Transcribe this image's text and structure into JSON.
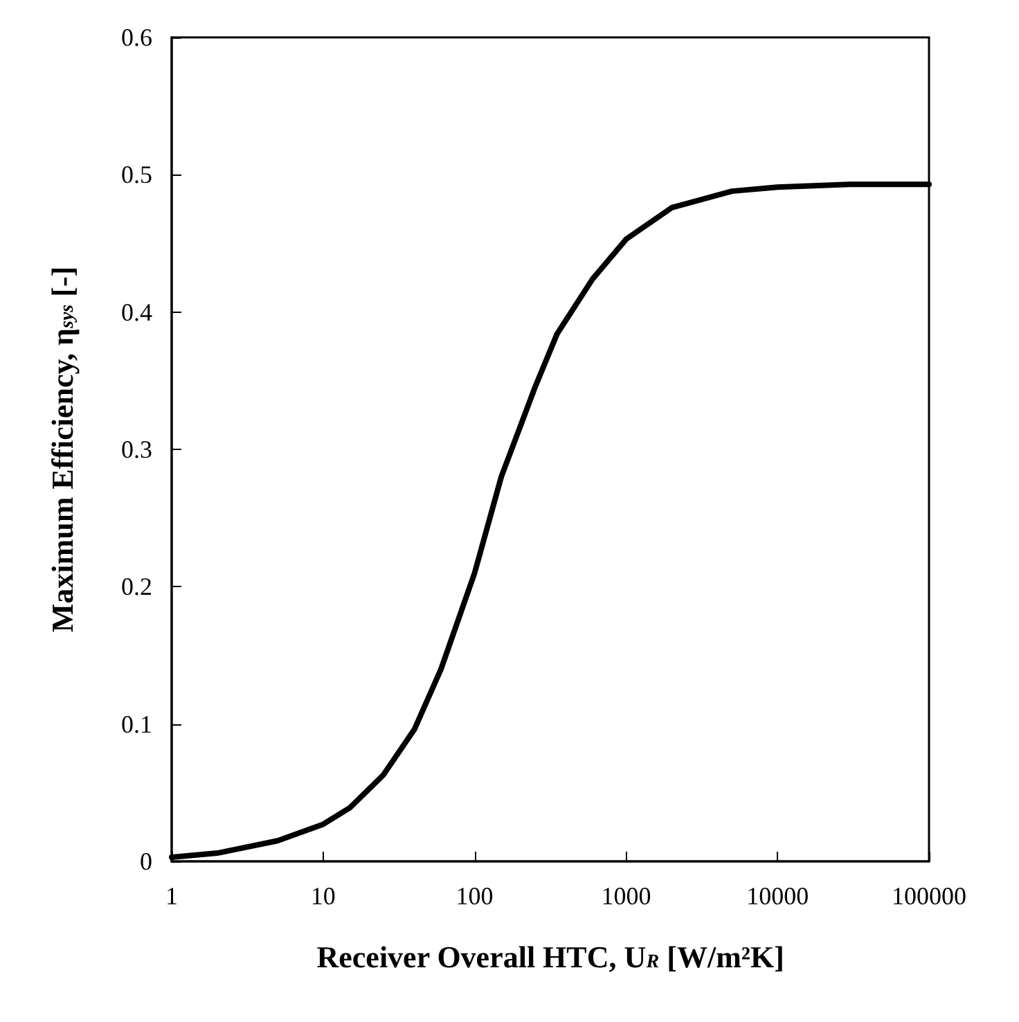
{
  "chart_data": {
    "type": "line",
    "xlabel": "Receiver Overall HTC, U$_{R}$ [W/m²K]",
    "ylabel": "Maximum Efficiency, η$_{sys}$ [-]",
    "log": "x",
    "xlim": [
      1,
      100000
    ],
    "xticks": [
      1,
      10,
      100,
      1000,
      10000,
      100000
    ],
    "ylim": [
      0,
      0.6
    ],
    "yticks": [
      0,
      0.1,
      0.2,
      0.3,
      0.4,
      0.5,
      0.6
    ],
    "grid": false,
    "marker": "none",
    "line_style": "solid",
    "series": [
      {
        "color": "#000000",
        "x": [
          1,
          2,
          5,
          10,
          15,
          25,
          40,
          60,
          100,
          150,
          250,
          350,
          600,
          1000,
          2000,
          5000,
          10000,
          30000,
          100000
        ],
        "values": [
          0.003,
          0.006,
          0.015,
          0.027,
          0.039,
          0.063,
          0.096,
          0.14,
          0.21,
          0.28,
          0.345,
          0.384,
          0.424,
          0.453,
          0.476,
          0.488,
          0.491,
          0.493,
          0.493
        ]
      }
    ]
  }
}
